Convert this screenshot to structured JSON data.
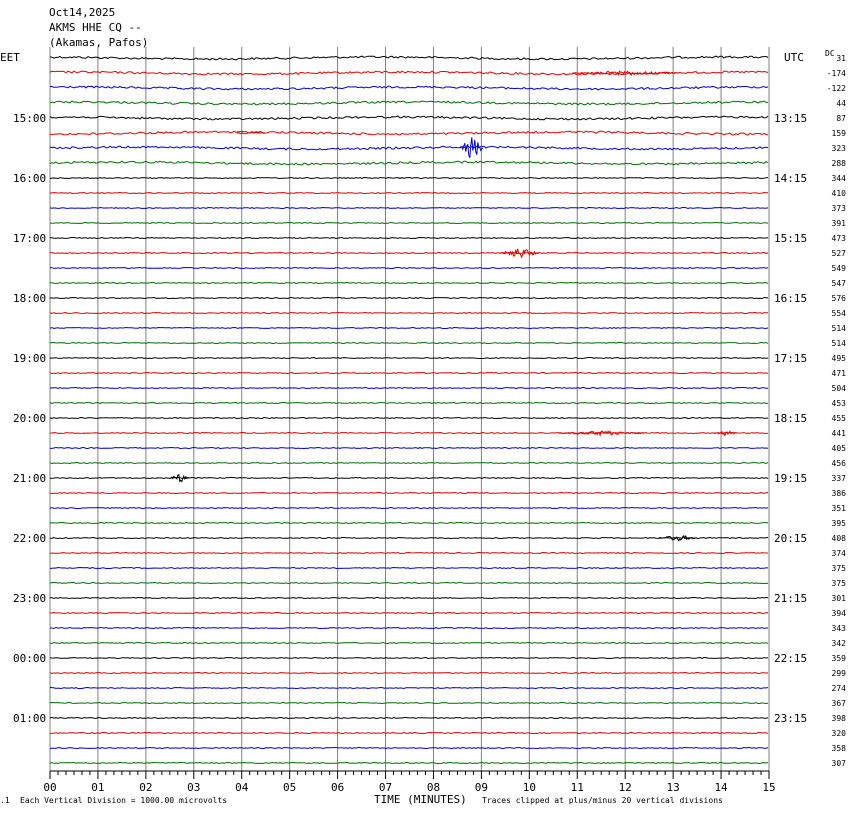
{
  "header": {
    "date": "Oct14,2025",
    "station": "AKMS HHE CQ --",
    "location": "(Akamas, Pafos)"
  },
  "left_tz": "EET",
  "right_tz": "UTC",
  "dc_label": "DC",
  "footer": {
    "scale_note": "Each Vertical Division = 1000.00 microvolts",
    "xlabel": "TIME (MINUTES)",
    "clip_note": "Traces clipped at plus/minus 20 vertical divisions"
  },
  "colors": {
    "trace_cycle": [
      "#000000",
      "#e00000",
      "#0000d0",
      "#007000"
    ],
    "grid": "#808080"
  },
  "chart_data": {
    "type": "line",
    "subtype": "helicorder",
    "x_ticks": [
      "00",
      "01",
      "02",
      "03",
      "04",
      "05",
      "06",
      "07",
      "08",
      "09",
      "10",
      "11",
      "12",
      "13",
      "14",
      "15"
    ],
    "xlim": [
      0,
      15
    ],
    "grid": true,
    "left_hour_labels": [
      "15:00",
      "16:00",
      "17:00",
      "18:00",
      "19:00",
      "20:00",
      "21:00",
      "22:00",
      "23:00",
      "00:00",
      "01:00"
    ],
    "right_hour_labels": [
      "13:15",
      "14:15",
      "15:15",
      "16:15",
      "17:15",
      "18:15",
      "19:15",
      "20:15",
      "21:15",
      "22:15",
      "23:15"
    ],
    "hour_label_first_row": 4,
    "rows_per_hour": 4,
    "dc_offsets": [
      "31",
      "-174",
      "-122",
      "44",
      "87",
      "159",
      "323",
      "288",
      "344",
      "410",
      "373",
      "391",
      "473",
      "527",
      "549",
      "547",
      "576",
      "554",
      "514",
      "514",
      "495",
      "471",
      "504",
      "453",
      "455",
      "441",
      "405",
      "456",
      "337",
      "386",
      "351",
      "395",
      "408",
      "374",
      "375",
      "375",
      "301",
      "394",
      "343",
      "342",
      "359",
      "299",
      "274",
      "367",
      "398",
      "320",
      "358",
      "307"
    ],
    "events": [
      {
        "row": 1,
        "minute": 12.0,
        "amp": 0.6,
        "duration": 2.2
      },
      {
        "row": 5,
        "minute": 4.2,
        "amp": 0.5,
        "duration": 0.6
      },
      {
        "row": 6,
        "minute": 8.8,
        "amp": 3.0,
        "duration": 0.5
      },
      {
        "row": 13,
        "minute": 9.8,
        "amp": 1.4,
        "duration": 0.8
      },
      {
        "row": 25,
        "minute": 11.5,
        "amp": 0.6,
        "duration": 1.8
      },
      {
        "row": 25,
        "minute": 14.1,
        "amp": 0.7,
        "duration": 0.5
      },
      {
        "row": 28,
        "minute": 2.7,
        "amp": 1.3,
        "duration": 0.4
      },
      {
        "row": 32,
        "minute": 13.1,
        "amp": 0.8,
        "duration": 0.8
      }
    ]
  }
}
